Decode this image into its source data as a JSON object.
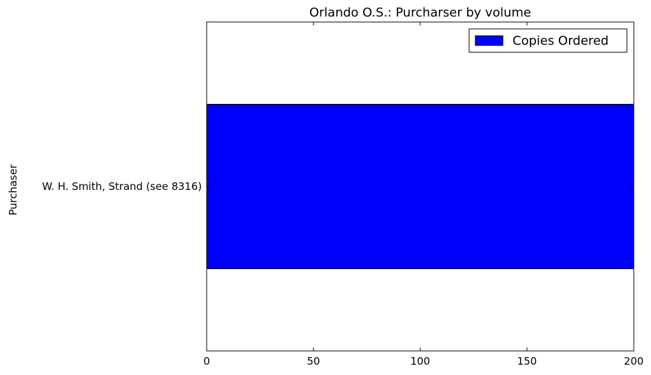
{
  "chart_data": {
    "type": "bar",
    "orientation": "horizontal",
    "title": "Orlando O.S.: Purcharser by volume",
    "xlabel": "",
    "ylabel": "Purchaser",
    "categories": [
      "W. H. Smith, Strand (see 8316)"
    ],
    "series": [
      {
        "name": "Copies Ordered",
        "values": [
          200
        ],
        "color": "#0000ff"
      }
    ],
    "xlim": [
      0,
      200
    ],
    "xticks": [
      0,
      50,
      100,
      150,
      200
    ],
    "grid": false,
    "legend_position": "top-right"
  }
}
